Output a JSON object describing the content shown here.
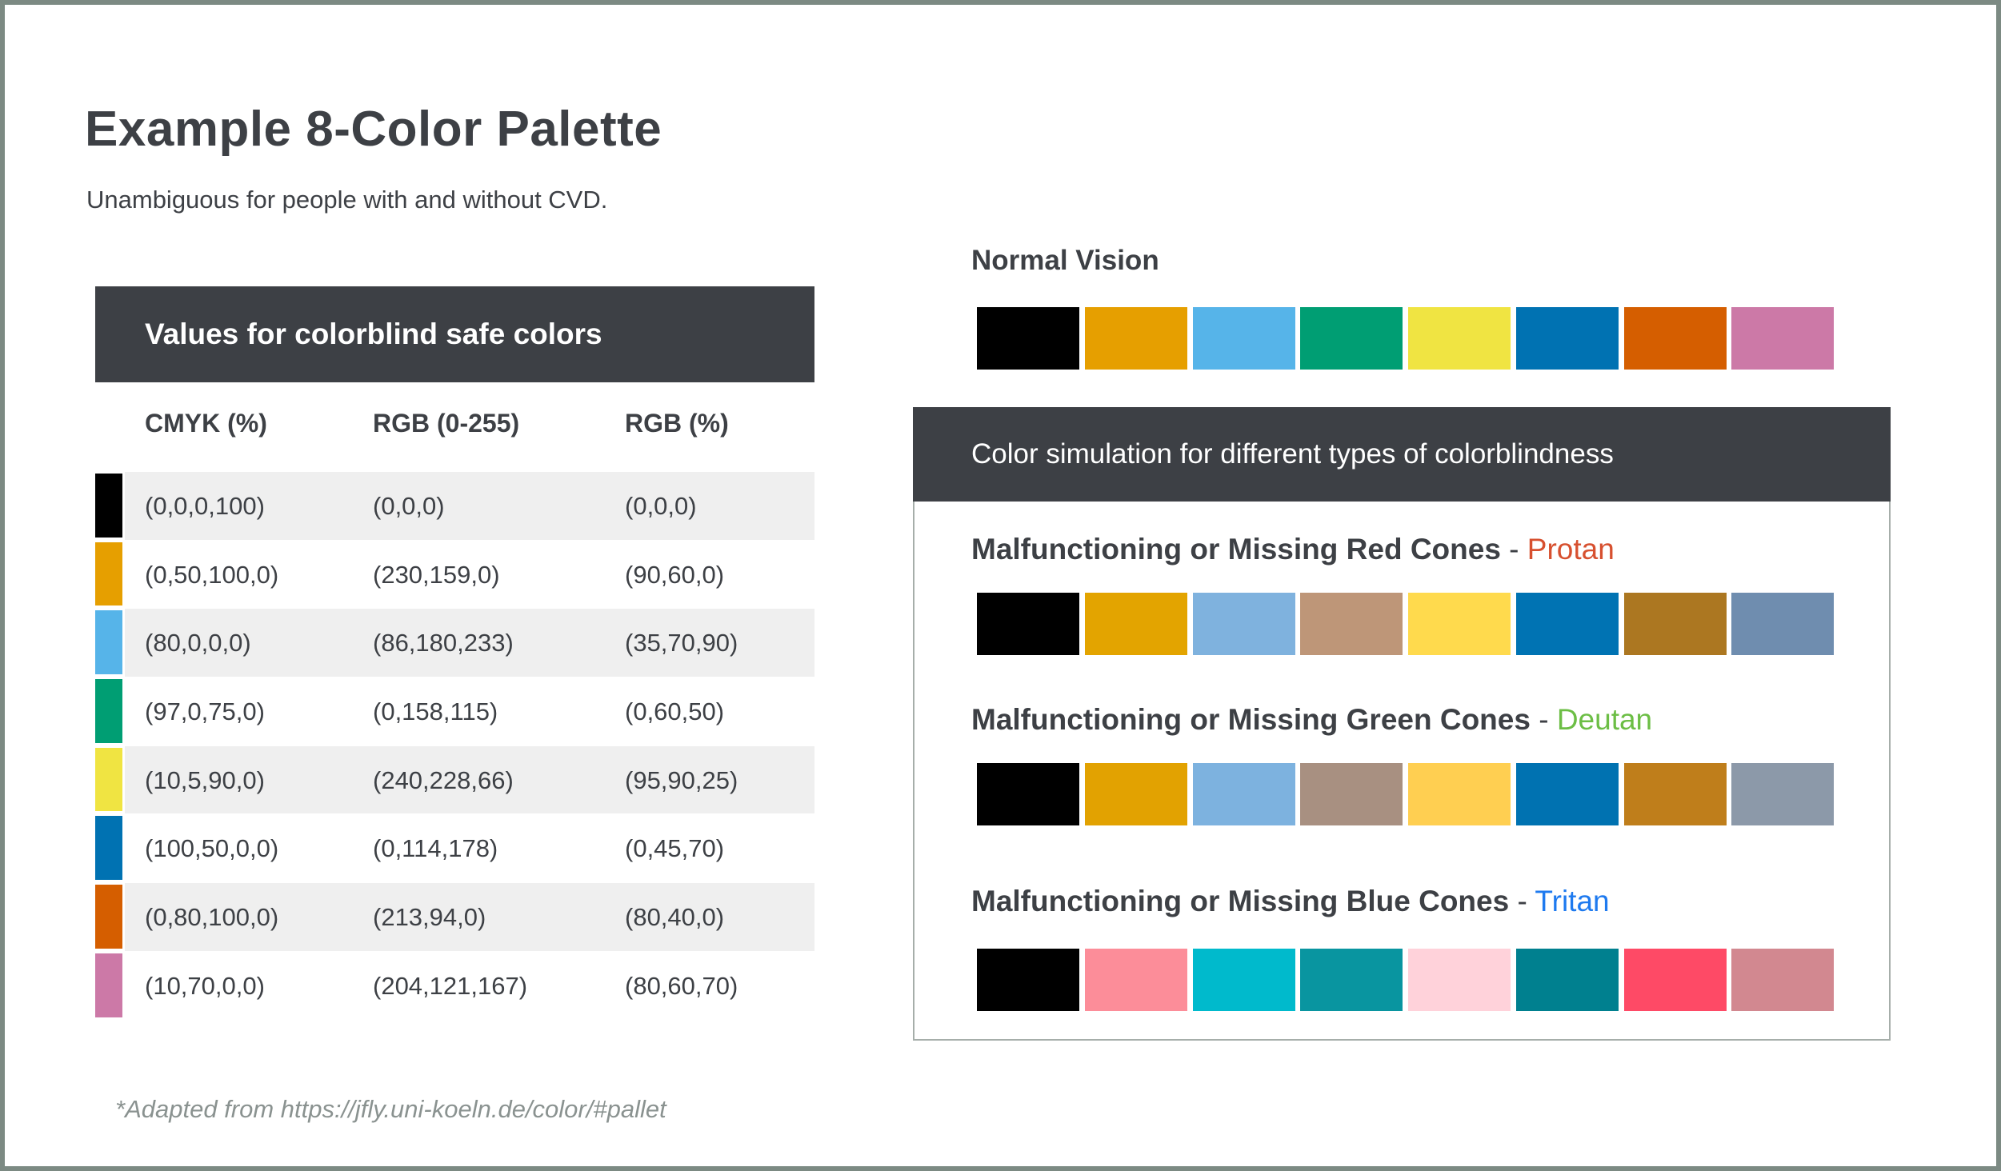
{
  "page": {
    "title": "Example 8-Color Palette",
    "subtitle": "Unambiguous for people with and without CVD.",
    "footnote_prefix": "*Adapted from",
    "footnote_url": "https://jfly.uni-koeln.de/color/#pallet"
  },
  "table": {
    "header": "Values for colorblind safe colors",
    "columns": [
      "CMYK (%)",
      "RGB (0-255)",
      "RGB (%)"
    ],
    "rows": [
      {
        "swatch": "#000000",
        "cmyk": "(0,0,0,100)",
        "rgb255": "(0,0,0)",
        "rgbpct": "(0,0,0)"
      },
      {
        "swatch": "#E69F00",
        "cmyk": "(0,50,100,0)",
        "rgb255": "(230,159,0)",
        "rgbpct": "(90,60,0)"
      },
      {
        "swatch": "#56B4E9",
        "cmyk": "(80,0,0,0)",
        "rgb255": "(86,180,233)",
        "rgbpct": "(35,70,90)"
      },
      {
        "swatch": "#009E73",
        "cmyk": "(97,0,75,0)",
        "rgb255": "(0,158,115)",
        "rgbpct": "(0,60,50)"
      },
      {
        "swatch": "#F0E442",
        "cmyk": "(10,5,90,0)",
        "rgb255": "(240,228,66)",
        "rgbpct": "(95,90,25)"
      },
      {
        "swatch": "#0072B2",
        "cmyk": "(100,50,0,0)",
        "rgb255": "(0,114,178)",
        "rgbpct": "(0,45,70)"
      },
      {
        "swatch": "#D55E00",
        "cmyk": "(0,80,100,0)",
        "rgb255": "(213,94,0)",
        "rgbpct": "(80,40,0)"
      },
      {
        "swatch": "#CC79A7",
        "cmyk": "(10,70,0,0)",
        "rgb255": "(204,121,167)",
        "rgbpct": "(80,60,70)"
      }
    ]
  },
  "simulations": {
    "normal": {
      "label": "Normal Vision",
      "colors": [
        "#000000",
        "#E69F00",
        "#56B4E9",
        "#009E73",
        "#F0E442",
        "#0072B2",
        "#D55E00",
        "#CC79A7"
      ]
    },
    "banner": "Color simulation for different types of colorblindness",
    "rows": [
      {
        "heading": "Malfunctioning or Missing Red Cones",
        "dash": " - ",
        "type": "Protan",
        "type_color": "#D7502F",
        "colors": [
          "#000000",
          "#E3A400",
          "#7FB2DE",
          "#BE9678",
          "#FFDA4D",
          "#0073B3",
          "#AC7721",
          "#6F8DAF"
        ]
      },
      {
        "heading": "Malfunctioning or Missing Green Cones",
        "dash": " - ",
        "type": "Deutan",
        "type_color": "#6CBE45",
        "colors": [
          "#000000",
          "#E2A201",
          "#7DB2DF",
          "#A89081",
          "#FFCF51",
          "#0072B1",
          "#BF7E1B",
          "#8C99A9"
        ]
      },
      {
        "heading": "Malfunctioning or Missing Blue Cones",
        "dash": " - ",
        "type": "Tritan",
        "type_color": "#1E7AEF",
        "colors": [
          "#000000",
          "#FC8D99",
          "#00BACC",
          "#0995A0",
          "#FFD2DA",
          "#00808F",
          "#FE4A66",
          "#D28890"
        ]
      }
    ]
  },
  "colors": {
    "accent_dark": "#3D4045",
    "stripe": "#EFEFEF",
    "page_border": "#7C8A83",
    "box_border": "#A6AEAA",
    "muted_text": "#8A9290"
  }
}
